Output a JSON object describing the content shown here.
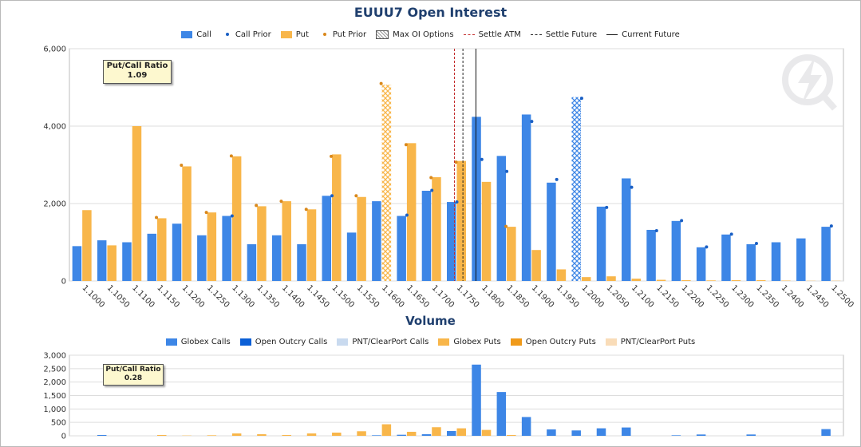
{
  "colors": {
    "call": "#3d86e6",
    "put": "#f8b64a",
    "call_prior": "#1a5fc4",
    "put_prior": "#d9881c",
    "settle_atm": "#c22a2a",
    "settle_future": "#222222",
    "current_future": "#111111",
    "globex_calls": "#3d86e6",
    "open_outcry_calls": "#0b5fd6",
    "pnt_calls": "#c9daef",
    "globex_puts": "#f8b64a",
    "open_outcry_puts": "#f09a1a",
    "pnt_puts": "#f9dcb8",
    "grid": "#dddddd",
    "title": "#1f3f6e"
  },
  "header": {
    "title": "EUUU7 Open Interest"
  },
  "legend_top": [
    {
      "label": "Call",
      "kind": "bar",
      "color": "#3d86e6"
    },
    {
      "label": "Call Prior",
      "kind": "dot",
      "color": "#1a5fc4"
    },
    {
      "label": "Put",
      "kind": "bar",
      "color": "#f8b64a"
    },
    {
      "label": "Put Prior",
      "kind": "dot",
      "color": "#d9881c"
    },
    {
      "label": "Max OI Options",
      "kind": "hatch",
      "color": "#777777"
    },
    {
      "label": "Settle ATM",
      "kind": "dashed",
      "color": "#c22a2a"
    },
    {
      "label": "Settle Future",
      "kind": "dashed",
      "color": "#222222"
    },
    {
      "label": "Current Future",
      "kind": "solid",
      "color": "#111111"
    }
  ],
  "oi_ratio": {
    "title": "Put/Call Ratio",
    "value": "1.09"
  },
  "volume": {
    "title": "Volume"
  },
  "legend_bottom": [
    {
      "label": "Globex Calls",
      "color": "#3d86e6"
    },
    {
      "label": "Open Outcry Calls",
      "color": "#0b5fd6"
    },
    {
      "label": "PNT/ClearPort Calls",
      "color": "#c9daef"
    },
    {
      "label": "Globex Puts",
      "color": "#f8b64a"
    },
    {
      "label": "Open Outcry Puts",
      "color": "#f09a1a"
    },
    {
      "label": "PNT/ClearPort Puts",
      "color": "#f9dcb8"
    }
  ],
  "vol_ratio": {
    "title": "Put/Call Ratio",
    "value": "0.28"
  },
  "chart_data": [
    {
      "type": "bar",
      "title": "EUUU7 Open Interest",
      "categories": [
        "1.1000",
        "1.1050",
        "1.1100",
        "1.1150",
        "1.1200",
        "1.1250",
        "1.1300",
        "1.1350",
        "1.1400",
        "1.1450",
        "1.1500",
        "1.1550",
        "1.1600",
        "1.1650",
        "1.1700",
        "1.1750",
        "1.1800",
        "1.1850",
        "1.1900",
        "1.1950",
        "1.2000",
        "1.2050",
        "1.2100",
        "1.2150",
        "1.2200",
        "1.2250",
        "1.2300",
        "1.2350",
        "1.2400",
        "1.2450",
        "1.2500"
      ],
      "yticks": [
        0,
        2000,
        4000,
        6000
      ],
      "ytick_labels": [
        "0",
        "2,000",
        "4,000",
        "6,000"
      ],
      "ylim": [
        0,
        6000
      ],
      "series": [
        {
          "name": "Call",
          "values": [
            900,
            1050,
            1000,
            1220,
            1480,
            1180,
            1680,
            950,
            1180,
            950,
            2200,
            1250,
            2060,
            1680,
            2330,
            2040,
            4240,
            3230,
            4300,
            2540,
            4750,
            1920,
            2650,
            1320,
            1550,
            870,
            1200,
            950,
            1000,
            1100,
            1400
          ]
        },
        {
          "name": "Put",
          "values": [
            1830,
            920,
            4000,
            1620,
            2960,
            1770,
            3220,
            1930,
            2060,
            1850,
            3270,
            2170,
            5070,
            3560,
            2680,
            3100,
            2560,
            1400,
            800,
            300,
            100,
            120,
            60,
            30,
            20,
            15,
            20,
            20,
            10,
            5,
            5
          ]
        },
        {
          "name": "Call Prior",
          "values": [
            null,
            null,
            null,
            null,
            null,
            null,
            1680,
            null,
            null,
            null,
            2200,
            null,
            null,
            1700,
            2340,
            2040,
            3140,
            2830,
            4120,
            2620,
            4720,
            1900,
            2420,
            1300,
            1560,
            880,
            1210,
            970,
            null,
            null,
            1420
          ]
        },
        {
          "name": "Put Prior",
          "values": [
            null,
            null,
            null,
            1640,
            2990,
            1770,
            3230,
            1950,
            2060,
            1850,
            3220,
            2200,
            5100,
            3520,
            2670,
            3070,
            null,
            1410,
            null,
            null,
            null,
            null,
            null,
            null,
            null,
            null,
            null,
            null,
            null,
            null,
            null
          ]
        }
      ],
      "max_oi": [
        {
          "series": "Put",
          "category": "1.1600"
        },
        {
          "series": "Call",
          "category": "1.2000"
        }
      ],
      "vertical_lines": [
        {
          "name": "Settle ATM",
          "x": 1.1746,
          "style": "dashed",
          "color": "#c22a2a"
        },
        {
          "name": "Settle Future",
          "x": 1.1763,
          "style": "dashed",
          "color": "#222222"
        },
        {
          "name": "Current Future",
          "x": 1.1789,
          "style": "solid",
          "color": "#111111"
        }
      ],
      "grid": true
    },
    {
      "type": "bar",
      "title": "Volume",
      "categories": [
        "1.1000",
        "1.1050",
        "1.1100",
        "1.1150",
        "1.1200",
        "1.1250",
        "1.1300",
        "1.1350",
        "1.1400",
        "1.1450",
        "1.1500",
        "1.1550",
        "1.1600",
        "1.1650",
        "1.1700",
        "1.1750",
        "1.1800",
        "1.1850",
        "1.1900",
        "1.1950",
        "1.2000",
        "1.2050",
        "1.2100",
        "1.2150",
        "1.2200",
        "1.2250",
        "1.2300",
        "1.2350",
        "1.2400",
        "1.2450",
        "1.2500"
      ],
      "yticks": [
        0,
        500,
        1000,
        1500,
        2000,
        2500,
        3000
      ],
      "ytick_labels": [
        "0",
        "500",
        "1,000",
        "1,500",
        "2,000",
        "2,500",
        "3,000"
      ],
      "ylim": [
        0,
        3000
      ],
      "series": [
        {
          "name": "Globex Calls",
          "values": [
            0,
            30,
            0,
            0,
            0,
            0,
            0,
            0,
            0,
            0,
            0,
            0,
            20,
            40,
            60,
            180,
            2650,
            1630,
            700,
            240,
            200,
            280,
            310,
            0,
            20,
            50,
            0,
            50,
            0,
            0,
            250
          ]
        },
        {
          "name": "Globex Puts",
          "values": [
            0,
            0,
            0,
            30,
            10,
            20,
            90,
            60,
            30,
            90,
            120,
            170,
            430,
            150,
            320,
            280,
            220,
            30,
            0,
            0,
            0,
            0,
            0,
            0,
            0,
            0,
            0,
            0,
            0,
            0,
            0
          ]
        }
      ],
      "grid": true
    }
  ]
}
